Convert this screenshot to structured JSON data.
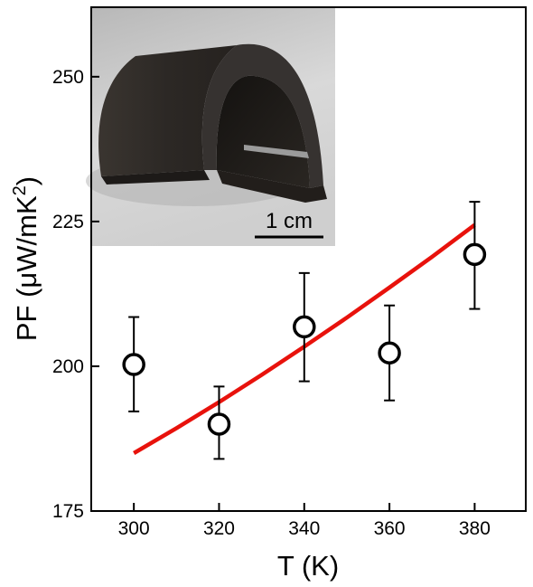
{
  "chart_data": {
    "type": "scatter",
    "xlabel": "T (K)",
    "ylabel": "PF (μW/mK²)",
    "xlim": [
      290,
      392
    ],
    "ylim": [
      175,
      262
    ],
    "x_ticks": [
      300,
      320,
      340,
      360,
      380
    ],
    "y_ticks": [
      175,
      200,
      225,
      250
    ],
    "grid": false,
    "series": [
      {
        "type": "scatter",
        "marker": "open-circle",
        "color": "#000000",
        "points": [
          {
            "x": 300,
            "y": 200.3,
            "err_low": 8.1,
            "err_high": 8.2
          },
          {
            "x": 320,
            "y": 190.0,
            "err_low": 6.0,
            "err_high": 6.5
          },
          {
            "x": 340,
            "y": 206.8,
            "err_low": 9.4,
            "err_high": 9.3
          },
          {
            "x": 360,
            "y": 202.3,
            "err_low": 8.2,
            "err_high": 8.2
          },
          {
            "x": 380,
            "y": 219.3,
            "err_low": 9.4,
            "err_high": 9.1
          }
        ]
      },
      {
        "type": "line",
        "color": "#e8120c",
        "x": [
          300,
          310,
          320,
          330,
          340,
          350,
          360,
          370,
          380
        ],
        "y": [
          185.0,
          189.3,
          193.8,
          198.5,
          203.4,
          208.4,
          213.6,
          218.9,
          224.4
        ]
      }
    ],
    "inset": {
      "scale_bar_label": "1 cm"
    }
  }
}
